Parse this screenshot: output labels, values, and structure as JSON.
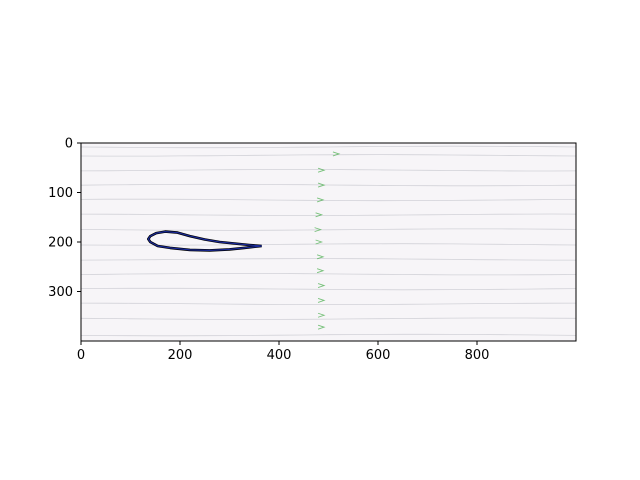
{
  "chart_data": {
    "type": "image",
    "title": "",
    "xlabel": "",
    "ylabel": "",
    "xlim": [
      0,
      1000
    ],
    "ylim": [
      400,
      0
    ],
    "y_inverted": true,
    "grid": false,
    "x_ticks": [
      0,
      200,
      400,
      600,
      800
    ],
    "y_ticks": [
      0,
      100,
      200,
      300
    ],
    "x_tick_labels": [
      "0",
      "200",
      "400",
      "600",
      "800"
    ],
    "y_tick_labels": [
      "0",
      "100",
      "200",
      "300"
    ],
    "streamline_y": [
      8,
      25,
      55,
      85,
      115,
      145,
      175,
      205,
      235,
      265,
      295,
      325,
      355,
      388
    ],
    "arrow_markers": [
      {
        "x": 515,
        "y": 22
      },
      {
        "x": 485,
        "y": 55
      },
      {
        "x": 485,
        "y": 85
      },
      {
        "x": 483,
        "y": 115
      },
      {
        "x": 480,
        "y": 145
      },
      {
        "x": 478,
        "y": 175
      },
      {
        "x": 480,
        "y": 200
      },
      {
        "x": 483,
        "y": 230
      },
      {
        "x": 483,
        "y": 258
      },
      {
        "x": 485,
        "y": 288
      },
      {
        "x": 485,
        "y": 318
      },
      {
        "x": 485,
        "y": 348
      },
      {
        "x": 485,
        "y": 372
      }
    ],
    "airfoil_outline": [
      [
        365,
        208
      ],
      [
        340,
        206
      ],
      [
        310,
        203
      ],
      [
        280,
        200
      ],
      [
        250,
        195
      ],
      [
        220,
        188
      ],
      [
        195,
        181
      ],
      [
        170,
        179
      ],
      [
        152,
        182
      ],
      [
        140,
        188
      ],
      [
        136,
        194
      ],
      [
        140,
        200
      ],
      [
        155,
        208
      ],
      [
        180,
        212
      ],
      [
        220,
        216
      ],
      [
        260,
        217
      ],
      [
        300,
        215
      ],
      [
        330,
        212
      ],
      [
        365,
        208
      ]
    ],
    "colors": {
      "background": "#f7f5f8",
      "streamline": "#d2d2d8",
      "arrow": "#4caf50",
      "airfoil_outer": "#000000",
      "airfoil_inner": "#1a2a9a"
    }
  }
}
